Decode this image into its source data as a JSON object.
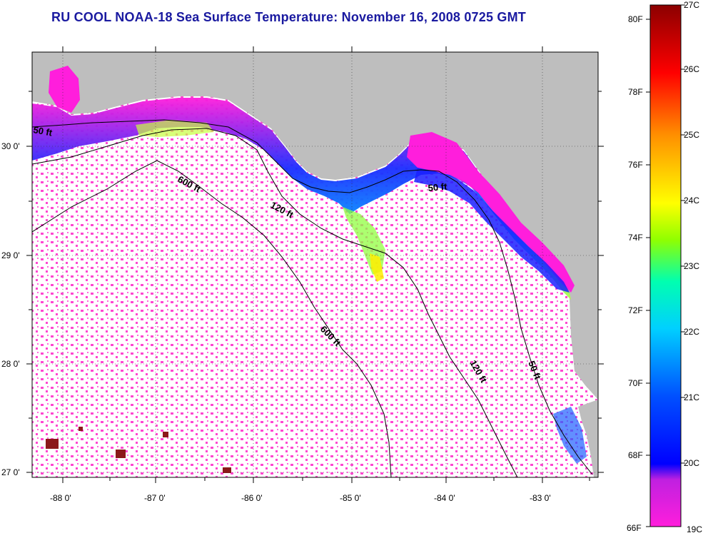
{
  "title": "RU COOL  NOAA-18  Sea Surface Temperature:  November 16, 2008 0725 GMT",
  "map": {
    "lon_ticks": [
      "-88 0'",
      "-87 0'",
      "-86 0'",
      "-85 0'",
      "-84 0'",
      "-83 0'"
    ],
    "lat_ticks": [
      "30 0'",
      "29 0'",
      "28 0'",
      "27 0'"
    ],
    "contour_labels": [
      "50 ft",
      "600 ft",
      "120 ft",
      "50 ft",
      "600 ft",
      "120 ft",
      "50 ft"
    ],
    "land_color": "#bebebe",
    "water_nodata_color": "#ffffff"
  },
  "colorbar": {
    "fahrenheit_labels": [
      "80F",
      "78F",
      "76F",
      "74F",
      "72F",
      "70F",
      "68F",
      "66F"
    ],
    "celsius_labels": [
      "27C",
      "26C",
      "25C",
      "24C",
      "23C",
      "22C",
      "21C",
      "20C",
      "19C"
    ],
    "colors": [
      "#ff1edc",
      "#7a2ad8",
      "#0000ff",
      "#00a0ff",
      "#00ffff",
      "#00ff90",
      "#c8ff00",
      "#ffff00",
      "#ff8c00",
      "#ff0000",
      "#8b0000"
    ]
  }
}
